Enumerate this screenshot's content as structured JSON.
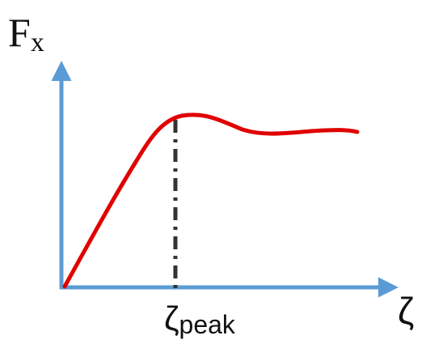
{
  "diagram": {
    "y_axis_label": {
      "main": "F",
      "subscript": "x"
    },
    "x_axis_label": "ζ",
    "peak_marker": {
      "symbol": "ζ",
      "subscript": "peak"
    },
    "colors": {
      "axis": "#5b9bd5",
      "curve": "#e00000",
      "peak_line": "#333333",
      "text": "#111111"
    }
  }
}
